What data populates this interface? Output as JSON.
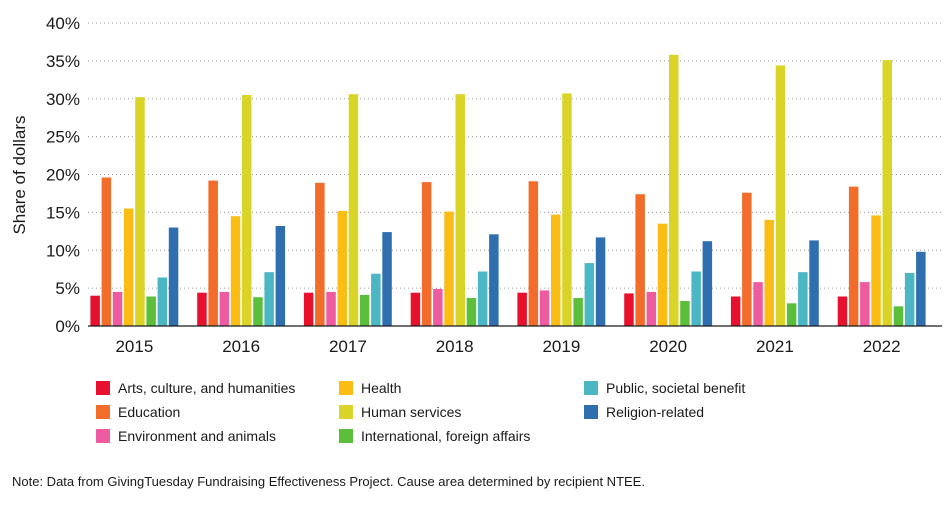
{
  "chart_data": {
    "type": "bar",
    "title": "",
    "xlabel": "",
    "ylabel": "Share of dollars",
    "ylim": [
      0,
      40
    ],
    "yticks": [
      0,
      5,
      10,
      15,
      20,
      25,
      30,
      35,
      40
    ],
    "ytick_labels": [
      "0%",
      "5%",
      "10%",
      "15%",
      "20%",
      "25%",
      "30%",
      "35%",
      "40%"
    ],
    "grid": "horizontal dotted",
    "legend_position": "bottom",
    "categories": [
      "2015",
      "2016",
      "2017",
      "2018",
      "2019",
      "2020",
      "2021",
      "2022"
    ],
    "series": [
      {
        "name": "Arts, culture, and humanities",
        "color": "#e8112d",
        "values": [
          4.0,
          4.4,
          4.4,
          4.4,
          4.4,
          4.3,
          3.9,
          3.9
        ]
      },
      {
        "name": "Education",
        "color": "#f26c2a",
        "values": [
          19.6,
          19.2,
          18.9,
          19.0,
          19.1,
          17.4,
          17.6,
          18.4
        ]
      },
      {
        "name": "Environment and animals",
        "color": "#ee5ba0",
        "values": [
          4.5,
          4.5,
          4.5,
          4.9,
          4.7,
          4.5,
          5.8,
          5.8
        ]
      },
      {
        "name": "Health",
        "color": "#fbbd13",
        "values": [
          15.5,
          14.5,
          15.2,
          15.1,
          14.7,
          13.5,
          14.0,
          14.6
        ]
      },
      {
        "name": "Human services",
        "color": "#dbd428",
        "values": [
          30.2,
          30.5,
          30.6,
          30.6,
          30.7,
          35.8,
          34.4,
          35.1
        ]
      },
      {
        "name": "International, foreign affairs",
        "color": "#5cbf3c",
        "values": [
          3.9,
          3.8,
          4.1,
          3.7,
          3.7,
          3.3,
          3.0,
          2.6
        ]
      },
      {
        "name": "Public, societal benefit",
        "color": "#4bb6c4",
        "values": [
          6.4,
          7.1,
          6.9,
          7.2,
          8.3,
          7.2,
          7.1,
          7.0
        ]
      },
      {
        "name": "Religion-related",
        "color": "#2f6fb0",
        "values": [
          13.0,
          13.2,
          12.4,
          12.1,
          11.7,
          11.2,
          11.3,
          9.8
        ]
      }
    ]
  },
  "note": "Note: Data from GivingTuesday Fundraising Effectiveness Project. Cause area determined by recipient NTEE."
}
